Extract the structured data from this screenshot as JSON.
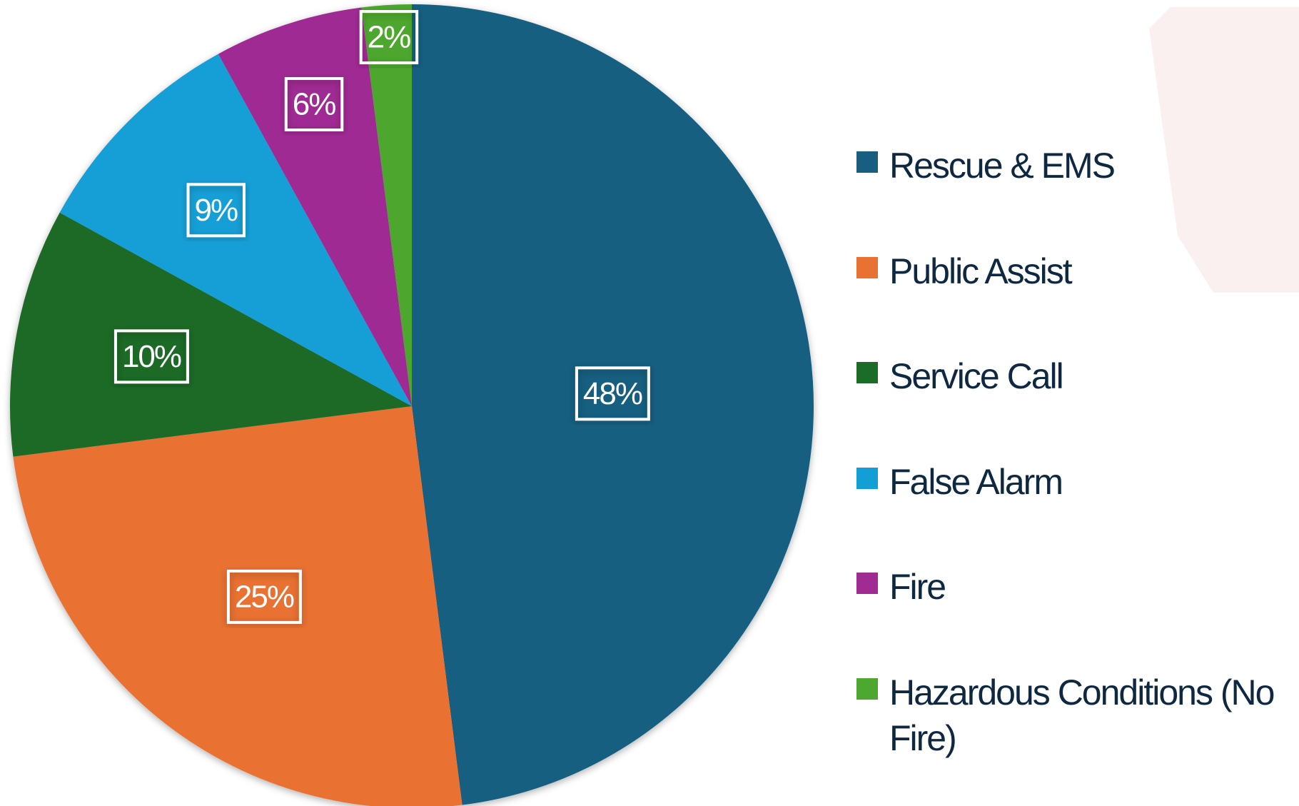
{
  "chart_data": {
    "type": "pie",
    "categories": [
      "Rescue & EMS",
      "Public Assist",
      "Service Call",
      "False Alarm",
      "Fire",
      "Hazardous Conditions (No Fire)"
    ],
    "values": [
      48,
      25,
      10,
      9,
      6,
      2
    ],
    "value_labels": [
      "48%",
      "25%",
      "10%",
      "9%",
      "6%",
      "2%"
    ],
    "colors": [
      "#175e80",
      "#e97132",
      "#1c6b26",
      "#139fd6",
      "#a02b93",
      "#4ea72e"
    ],
    "legend": "right"
  }
}
